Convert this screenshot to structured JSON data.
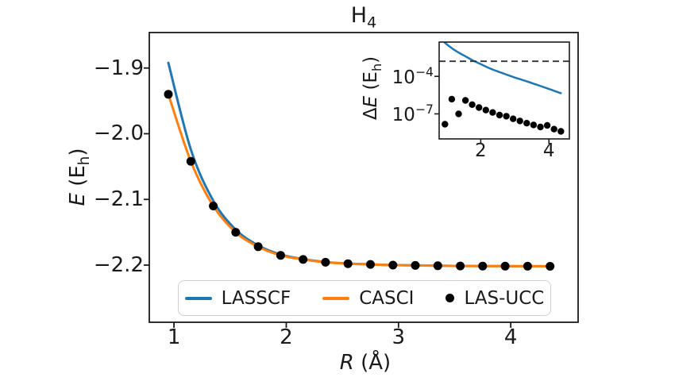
{
  "figure": {
    "title": {
      "text": "H",
      "sub": "4"
    }
  },
  "main_plot": {
    "xlabel": {
      "italic": "R",
      "rest": " (Å)"
    },
    "ylabel": {
      "italic": "E",
      "pre": " (E",
      "sub": "h",
      "post": ")"
    },
    "x_ticks": [
      {
        "value": 1,
        "label": "1"
      },
      {
        "value": 2,
        "label": "2"
      },
      {
        "value": 3,
        "label": "3"
      },
      {
        "value": 4,
        "label": "4"
      }
    ],
    "y_ticks": [
      {
        "value": -1.9,
        "label": "−1.9"
      },
      {
        "value": -2.0,
        "label": "−2.0"
      },
      {
        "value": -2.1,
        "label": "−2.1"
      },
      {
        "value": -2.2,
        "label": "−2.2"
      }
    ]
  },
  "inset_plot": {
    "ylabel": {
      "pre": "Δ",
      "italic": "E",
      "mid": " (E",
      "sub": "h",
      "post": ")"
    },
    "x_ticks": [
      {
        "value": 2,
        "label": "2"
      },
      {
        "value": 4,
        "label": "4"
      }
    ],
    "y_ticks": [
      {
        "value": 0.0001,
        "base": "10",
        "exp": "−4"
      },
      {
        "value": 1e-07,
        "base": "10",
        "exp": "−7"
      }
    ]
  },
  "legend": {
    "items": [
      {
        "label": "LASSCF",
        "swatch": "line",
        "color": "#1f77b4"
      },
      {
        "label": "CASCI",
        "swatch": "line",
        "color": "#ff7f0e"
      },
      {
        "label": "LAS-UCC",
        "swatch": "dot",
        "color": "#000000"
      }
    ]
  },
  "colors": {
    "lasscf": "#1f77b4",
    "casci": "#ff7f0e",
    "lasucc": "#000000",
    "threshold": "#333333",
    "spine": "#1a1a1a"
  },
  "chart_data": [
    {
      "type": "line",
      "panel": "main",
      "title": "H4",
      "xlabel": "R (Å)",
      "ylabel": "E (Eh)",
      "xlim": [
        0.78,
        4.6
      ],
      "ylim": [
        -2.287,
        -1.846
      ],
      "grid": false,
      "legend_position": "lower center",
      "x": [
        0.95,
        1.15,
        1.35,
        1.55,
        1.75,
        1.95,
        2.15,
        2.35,
        2.55,
        2.75,
        2.95,
        3.15,
        3.35,
        3.55,
        3.75,
        3.95,
        4.15,
        4.35
      ],
      "series": [
        {
          "name": "LASSCF",
          "type": "line",
          "color": "#1f77b4",
          "values": [
            -1.892,
            -2.024,
            -2.102,
            -2.146,
            -2.17,
            -2.184,
            -2.1908,
            -2.1954,
            -2.1976,
            -2.1988,
            -2.1999,
            -2.2004,
            -2.201,
            -2.2013,
            -2.2015,
            -2.2016,
            -2.2017,
            -2.2018
          ]
        },
        {
          "name": "CASCI",
          "type": "line",
          "color": "#ff7f0e",
          "values": [
            -1.94,
            -2.042,
            -2.11,
            -2.15,
            -2.172,
            -2.1851,
            -2.1914,
            -2.1957,
            -2.1978,
            -2.1989,
            -2.2,
            -2.2005,
            -2.201,
            -2.2013,
            -2.2015,
            -2.2016,
            -2.2017,
            -2.2018
          ]
        },
        {
          "name": "LAS-UCC",
          "type": "scatter",
          "color": "#000000",
          "values": [
            -1.94,
            -2.042,
            -2.11,
            -2.15,
            -2.172,
            -2.1851,
            -2.1914,
            -2.1957,
            -2.1978,
            -2.1989,
            -2.2,
            -2.2005,
            -2.201,
            -2.2013,
            -2.2015,
            -2.2016,
            -2.2017,
            -2.2018
          ]
        }
      ]
    },
    {
      "type": "line",
      "panel": "inset",
      "ylabel": "ΔE (Eh)",
      "yscale": "log",
      "xlim": [
        0.78,
        4.6
      ],
      "ylim": [
        1e-09,
        0.055
      ],
      "grid": false,
      "x": [
        0.95,
        1.15,
        1.35,
        1.55,
        1.75,
        1.95,
        2.15,
        2.35,
        2.55,
        2.75,
        2.95,
        3.15,
        3.35,
        3.55,
        3.75,
        3.95,
        4.15,
        4.35
      ],
      "series": [
        {
          "name": "LASSCF error",
          "type": "line",
          "color": "#1f77b4",
          "values": [
            0.048,
            0.018,
            0.008,
            0.004,
            0.002,
            0.0011,
            0.0006,
            0.00035,
            0.00022,
            0.00014,
            9e-05,
            6e-05,
            4e-05,
            2.6e-05,
            1.7e-05,
            1.1e-05,
            7e-06,
            4.5e-06
          ]
        },
        {
          "name": "LAS-UCC error",
          "type": "scatter",
          "color": "#000000",
          "values": [
            1.5e-08,
            1.5e-06,
            1e-07,
            1.2e-06,
            5.5e-07,
            3.2e-07,
            2e-07,
            1.3e-07,
            8e-08,
            6.5e-08,
            4e-08,
            2.7e-08,
            1.8e-08,
            1.3e-08,
            9e-09,
            1.2e-08,
            6e-09,
            4e-09
          ]
        },
        {
          "name": "chemical accuracy threshold",
          "type": "hline",
          "style": "dashed",
          "color": "#333333",
          "value": 0.0016
        }
      ]
    }
  ]
}
